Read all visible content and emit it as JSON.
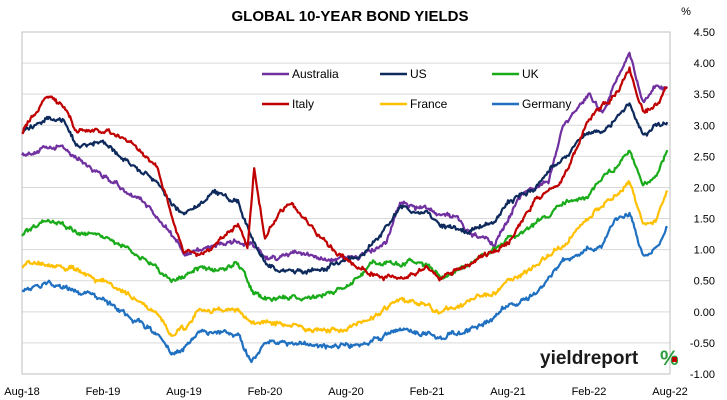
{
  "chart_data": {
    "type": "line",
    "title": "GLOBAL 10-YEAR BOND YIELDS",
    "ylabel": "%",
    "ylim": [
      -1.0,
      4.5
    ],
    "y_ticks": [
      "4.50",
      "4.00",
      "3.50",
      "3.00",
      "2.50",
      "2.00",
      "1.50",
      "1.00",
      "0.50",
      "0.00",
      "-0.50",
      "-1.00"
    ],
    "x_ticks": [
      "Aug-18",
      "Feb-19",
      "Aug-19",
      "Feb-20",
      "Aug-20",
      "Feb-21",
      "Aug-21",
      "Feb-22",
      "Aug-22"
    ],
    "x_range": [
      0,
      48
    ],
    "y_axis_position": "right",
    "grid": true,
    "legend_placement": "top-center",
    "series": [
      {
        "name": "Australia",
        "color": "#7030a0",
        "points": [
          [
            0,
            2.55
          ],
          [
            3,
            2.65
          ],
          [
            6,
            2.2
          ],
          [
            9,
            1.75
          ],
          [
            11,
            1.3
          ],
          [
            12,
            0.9
          ],
          [
            13,
            1.0
          ],
          [
            15,
            1.1
          ],
          [
            17,
            1.1
          ],
          [
            18,
            0.85
          ],
          [
            19,
            0.85
          ],
          [
            20,
            0.95
          ],
          [
            23,
            0.85
          ],
          [
            25,
            0.9
          ],
          [
            27,
            1.1
          ],
          [
            28,
            1.75
          ],
          [
            30,
            1.65
          ],
          [
            32,
            1.55
          ],
          [
            33,
            1.3
          ],
          [
            34,
            1.2
          ],
          [
            35,
            1.1
          ],
          [
            37,
            1.9
          ],
          [
            39,
            2.1
          ],
          [
            40,
            2.9
          ],
          [
            42,
            3.5
          ],
          [
            43,
            3.2
          ],
          [
            44,
            3.7
          ],
          [
            45,
            4.15
          ],
          [
            46,
            3.4
          ],
          [
            47,
            3.6
          ],
          [
            47.8,
            3.6
          ]
        ]
      },
      {
        "name": "US",
        "color": "#0e2a5c",
        "points": [
          [
            0,
            2.9
          ],
          [
            2,
            3.1
          ],
          [
            3,
            3.1
          ],
          [
            4,
            2.7
          ],
          [
            6,
            2.7
          ],
          [
            8,
            2.4
          ],
          [
            10,
            2.1
          ],
          [
            11,
            1.75
          ],
          [
            12,
            1.6
          ],
          [
            13,
            1.7
          ],
          [
            14,
            1.9
          ],
          [
            16,
            1.8
          ],
          [
            17,
            1.2
          ],
          [
            18,
            0.8
          ],
          [
            19,
            0.65
          ],
          [
            21,
            0.65
          ],
          [
            23,
            0.75
          ],
          [
            25,
            0.9
          ],
          [
            27,
            1.35
          ],
          [
            28,
            1.65
          ],
          [
            30,
            1.6
          ],
          [
            31,
            1.4
          ],
          [
            33,
            1.3
          ],
          [
            35,
            1.45
          ],
          [
            36,
            1.75
          ],
          [
            38,
            2.0
          ],
          [
            40,
            2.45
          ],
          [
            42,
            2.9
          ],
          [
            43,
            2.85
          ],
          [
            44,
            3.1
          ],
          [
            45,
            3.35
          ],
          [
            46,
            2.75
          ],
          [
            47,
            3.0
          ],
          [
            47.8,
            3.05
          ]
        ]
      },
      {
        "name": "UK",
        "color": "#1aab1a",
        "points": [
          [
            0,
            1.25
          ],
          [
            2,
            1.5
          ],
          [
            4,
            1.3
          ],
          [
            6,
            1.2
          ],
          [
            8,
            1.0
          ],
          [
            10,
            0.7
          ],
          [
            11,
            0.5
          ],
          [
            12,
            0.55
          ],
          [
            13,
            0.7
          ],
          [
            15,
            0.7
          ],
          [
            16,
            0.8
          ],
          [
            17,
            0.35
          ],
          [
            18,
            0.2
          ],
          [
            20,
            0.2
          ],
          [
            22,
            0.25
          ],
          [
            24,
            0.4
          ],
          [
            26,
            0.8
          ],
          [
            28,
            0.8
          ],
          [
            30,
            0.75
          ],
          [
            31,
            0.55
          ],
          [
            33,
            0.75
          ],
          [
            35,
            1.0
          ],
          [
            36,
            1.2
          ],
          [
            38,
            1.4
          ],
          [
            40,
            1.7
          ],
          [
            42,
            1.9
          ],
          [
            43,
            2.2
          ],
          [
            44,
            2.3
          ],
          [
            45,
            2.6
          ],
          [
            46,
            2.0
          ],
          [
            47,
            2.2
          ],
          [
            47.8,
            2.6
          ]
        ]
      },
      {
        "name": "Italy",
        "color": "#c00000",
        "points": [
          [
            0,
            2.9
          ],
          [
            1,
            3.2
          ],
          [
            2,
            3.45
          ],
          [
            3,
            3.35
          ],
          [
            4,
            2.9
          ],
          [
            6,
            2.9
          ],
          [
            8,
            2.75
          ],
          [
            10,
            2.3
          ],
          [
            11,
            1.6
          ],
          [
            12,
            0.95
          ],
          [
            13,
            0.9
          ],
          [
            14,
            1.0
          ],
          [
            16,
            1.45
          ],
          [
            16.7,
            1.0
          ],
          [
            17.2,
            2.3
          ],
          [
            17.5,
            1.85
          ],
          [
            18,
            1.2
          ],
          [
            19,
            1.6
          ],
          [
            20,
            1.8
          ],
          [
            21,
            1.45
          ],
          [
            23,
            1.0
          ],
          [
            25,
            0.7
          ],
          [
            27,
            0.55
          ],
          [
            28,
            0.55
          ],
          [
            30,
            0.7
          ],
          [
            31,
            0.55
          ],
          [
            32,
            0.65
          ],
          [
            34,
            0.9
          ],
          [
            36,
            1.1
          ],
          [
            38,
            1.8
          ],
          [
            40,
            2.1
          ],
          [
            42,
            3.1
          ],
          [
            43,
            3.3
          ],
          [
            44,
            3.5
          ],
          [
            45,
            3.9
          ],
          [
            46,
            3.2
          ],
          [
            47,
            3.3
          ],
          [
            47.8,
            3.6
          ]
        ]
      },
      {
        "name": "France",
        "color": "#ffc000",
        "points": [
          [
            0,
            0.75
          ],
          [
            2,
            0.75
          ],
          [
            4,
            0.65
          ],
          [
            6,
            0.5
          ],
          [
            8,
            0.25
          ],
          [
            10,
            0.0
          ],
          [
            11,
            -0.35
          ],
          [
            12,
            -0.3
          ],
          [
            13,
            0.0
          ],
          [
            15,
            0.0
          ],
          [
            16,
            0.0
          ],
          [
            17,
            -0.2
          ],
          [
            18,
            -0.2
          ],
          [
            20,
            -0.2
          ],
          [
            22,
            -0.3
          ],
          [
            24,
            -0.3
          ],
          [
            26,
            -0.1
          ],
          [
            28,
            0.2
          ],
          [
            30,
            0.1
          ],
          [
            31,
            -0.05
          ],
          [
            33,
            0.2
          ],
          [
            35,
            0.3
          ],
          [
            36,
            0.5
          ],
          [
            38,
            0.75
          ],
          [
            40,
            1.05
          ],
          [
            42,
            1.5
          ],
          [
            43,
            1.7
          ],
          [
            44,
            1.9
          ],
          [
            45,
            2.1
          ],
          [
            46,
            1.4
          ],
          [
            47,
            1.5
          ],
          [
            47.8,
            1.95
          ]
        ]
      },
      {
        "name": "Germany",
        "color": "#1f70c1",
        "points": [
          [
            0,
            0.35
          ],
          [
            2,
            0.45
          ],
          [
            4,
            0.3
          ],
          [
            6,
            0.2
          ],
          [
            8,
            -0.1
          ],
          [
            10,
            -0.35
          ],
          [
            11,
            -0.65
          ],
          [
            12,
            -0.6
          ],
          [
            13,
            -0.35
          ],
          [
            15,
            -0.3
          ],
          [
            16,
            -0.4
          ],
          [
            17,
            -0.8
          ],
          [
            18,
            -0.5
          ],
          [
            20,
            -0.5
          ],
          [
            22,
            -0.55
          ],
          [
            24,
            -0.55
          ],
          [
            26,
            -0.45
          ],
          [
            28,
            -0.25
          ],
          [
            30,
            -0.35
          ],
          [
            31,
            -0.4
          ],
          [
            33,
            -0.3
          ],
          [
            35,
            -0.1
          ],
          [
            36,
            0.1
          ],
          [
            38,
            0.25
          ],
          [
            40,
            0.8
          ],
          [
            42,
            1.0
          ],
          [
            43,
            1.1
          ],
          [
            44,
            1.5
          ],
          [
            45,
            1.6
          ],
          [
            46,
            0.85
          ],
          [
            47,
            1.0
          ],
          [
            47.8,
            1.35
          ]
        ]
      }
    ]
  },
  "logo": {
    "text": "yieldreport",
    "pct": "%",
    "pct_color": "#2e9d3e",
    "pct_accent": "#c00000"
  }
}
